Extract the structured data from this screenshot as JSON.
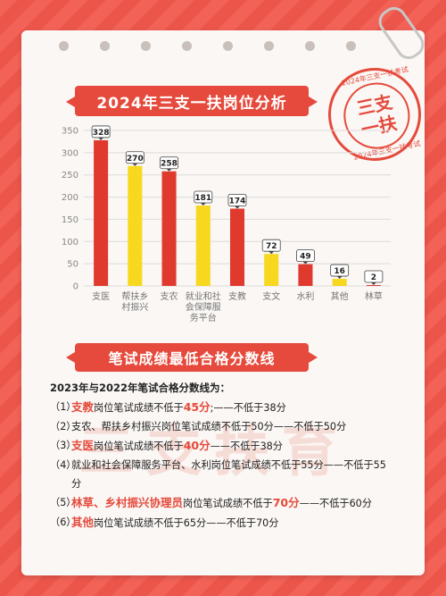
{
  "header": {
    "title": "2024年三支一扶岗位分析",
    "stamp_main_1": "三支",
    "stamp_main_2": "一扶",
    "stamp_ring_1": "2024年三支一扶考试",
    "stamp_ring_2": "2024年三支一扶考试"
  },
  "chart_data": {
    "type": "bar",
    "categories": [
      "支医",
      "帮扶乡村振兴",
      "支农",
      "就业和社会保障服务平台",
      "支教",
      "支文",
      "水利",
      "其他",
      "林草"
    ],
    "category_lines": [
      [
        "支医"
      ],
      [
        "帮扶乡",
        "村振兴"
      ],
      [
        "支农"
      ],
      [
        "就业和社",
        "会保障服",
        "务平台"
      ],
      [
        "支教"
      ],
      [
        "支文"
      ],
      [
        "水利"
      ],
      [
        "其他"
      ],
      [
        "林草"
      ]
    ],
    "values": [
      328,
      270,
      258,
      181,
      174,
      72,
      49,
      16,
      2
    ],
    "value_labels": [
      "328",
      "270",
      "258",
      "181",
      "174",
      "72",
      "49",
      "16",
      "2"
    ],
    "bar_colors": [
      "#e03a2f",
      "#f7d81e",
      "#e03a2f",
      "#f7d81e",
      "#e03a2f",
      "#f7d81e",
      "#e03a2f",
      "#f7d81e",
      "#e03a2f"
    ],
    "yticks": [
      "0",
      "50",
      "100",
      "150",
      "200",
      "250",
      "300",
      "350"
    ],
    "ylim": [
      0,
      350
    ],
    "grid": true
  },
  "section2": {
    "title": "笔试成绩最低合格分数线"
  },
  "watermark": "三支扶育",
  "notes": {
    "heading": "2023年与2022年笔试合格分数线为：",
    "items": [
      {
        "num": "（1）",
        "hl": "支教",
        "a": "岗位笔试成绩不低于",
        "score": "45分",
        "b": ";——不低于38分"
      },
      {
        "num": "（2）",
        "hl": "",
        "a": "支农、帮扶乡村振兴岗位笔试成绩不低于50分——不低于50分",
        "score": "",
        "b": ""
      },
      {
        "num": "（3）",
        "hl": "支医",
        "a": "岗位笔试成绩不低于",
        "score": "40分",
        "b": "——不低于38分"
      },
      {
        "num": "（4）",
        "hl": "",
        "a": "就业和社会保障服务平台、水利岗位笔试成绩不低于55分——不低于55分",
        "score": "",
        "b": ""
      },
      {
        "num": "（5）",
        "hl": "林草、乡村振兴协理员",
        "a": "岗位笔试成绩不低于",
        "score": "70分",
        "b": "——不低于60分"
      },
      {
        "num": "（6）",
        "hl": "其他",
        "a": "岗位笔试成绩不低于65分——不低于70分",
        "score": "",
        "b": ""
      }
    ]
  }
}
